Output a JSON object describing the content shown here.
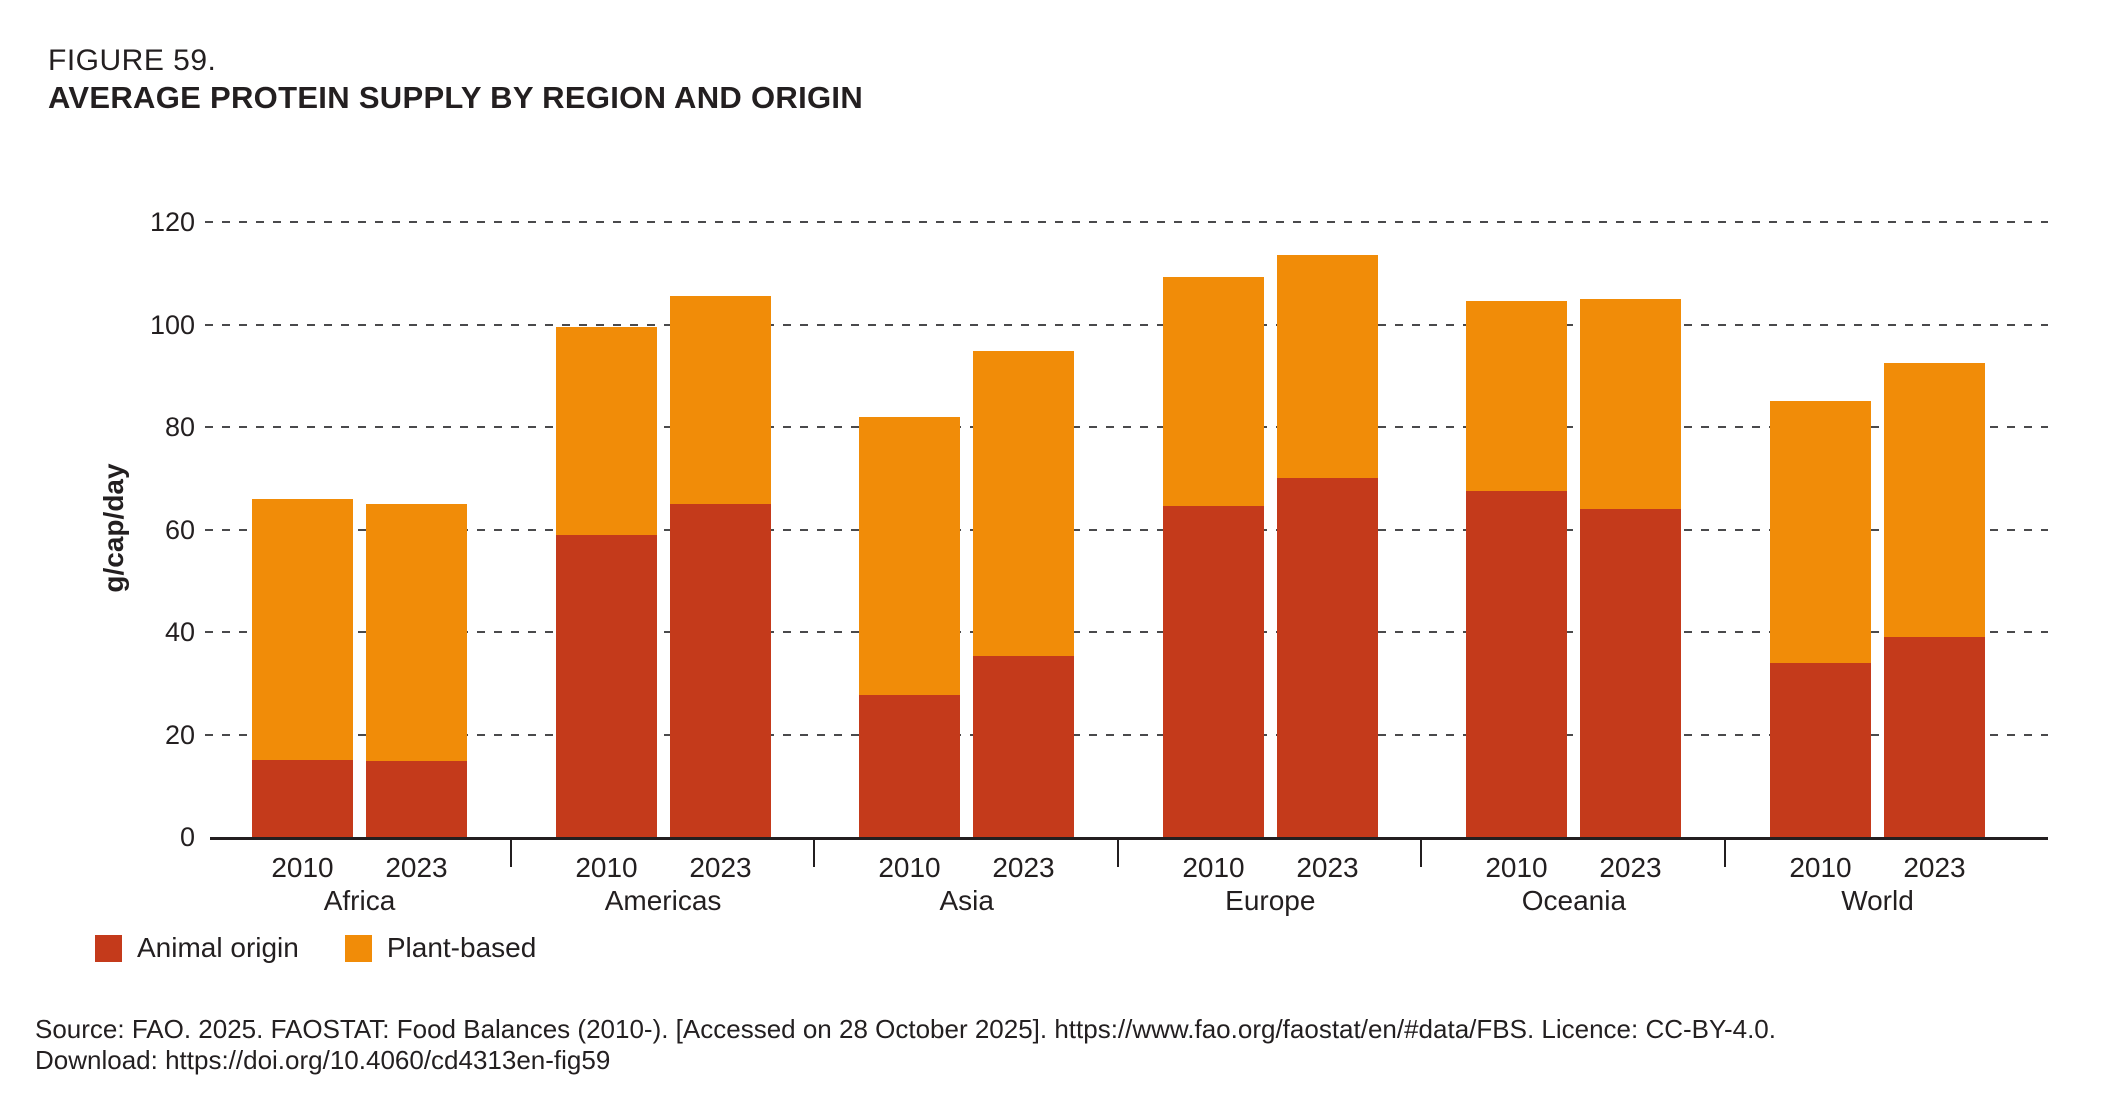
{
  "figure": {
    "label": "FIGURE 59.",
    "title": "AVERAGE PROTEIN SUPPLY BY REGION AND ORIGIN"
  },
  "chart_data": {
    "type": "bar",
    "stacked": true,
    "title": "Average protein supply by region and origin",
    "xlabel": "",
    "ylabel": "g/cap/day",
    "ylim": [
      0,
      120
    ],
    "ytick_step": 20,
    "yticks": [
      0,
      20,
      40,
      60,
      80,
      100,
      120
    ],
    "grid": "horizontal-dashed",
    "legend_position": "bottom-left",
    "groups": [
      "Africa",
      "Americas",
      "Asia",
      "Europe",
      "Oceania",
      "World"
    ],
    "years": [
      "2010",
      "2023"
    ],
    "series": [
      {
        "name": "Animal origin",
        "color": "#c43a1b",
        "values": [
          [
            15.0,
            14.8
          ],
          [
            59.0,
            65.0
          ],
          [
            27.7,
            35.3
          ],
          [
            64.5,
            70.0
          ],
          [
            67.5,
            64.0
          ],
          [
            34.0,
            39.0
          ]
        ]
      },
      {
        "name": "Plant-based",
        "color": "#f18c08",
        "values": [
          [
            51.0,
            50.2
          ],
          [
            40.5,
            40.5
          ],
          [
            54.2,
            59.5
          ],
          [
            44.8,
            43.5
          ],
          [
            37.0,
            41.0
          ],
          [
            51.0,
            53.5
          ]
        ]
      }
    ],
    "totals": [
      [
        66.0,
        65.0
      ],
      [
        99.5,
        105.5
      ],
      [
        81.9,
        94.8
      ],
      [
        109.3,
        113.5
      ],
      [
        104.5,
        105.0
      ],
      [
        85.0,
        92.5
      ]
    ]
  },
  "colors": {
    "animal_origin": "#c43a1b",
    "plant_based": "#f18c08",
    "text": "#231f20",
    "gridline": "#4a4a4c"
  },
  "source": {
    "line1": "Source: FAO. 2025. FAOSTAT: Food Balances (2010-). [Accessed on 28 October 2025]. https://www.fao.org/faostat/en/#data/FBS. Licence: CC-BY-4.0.",
    "line2": "Download: https://doi.org/10.4060/cd4313en-fig59"
  }
}
